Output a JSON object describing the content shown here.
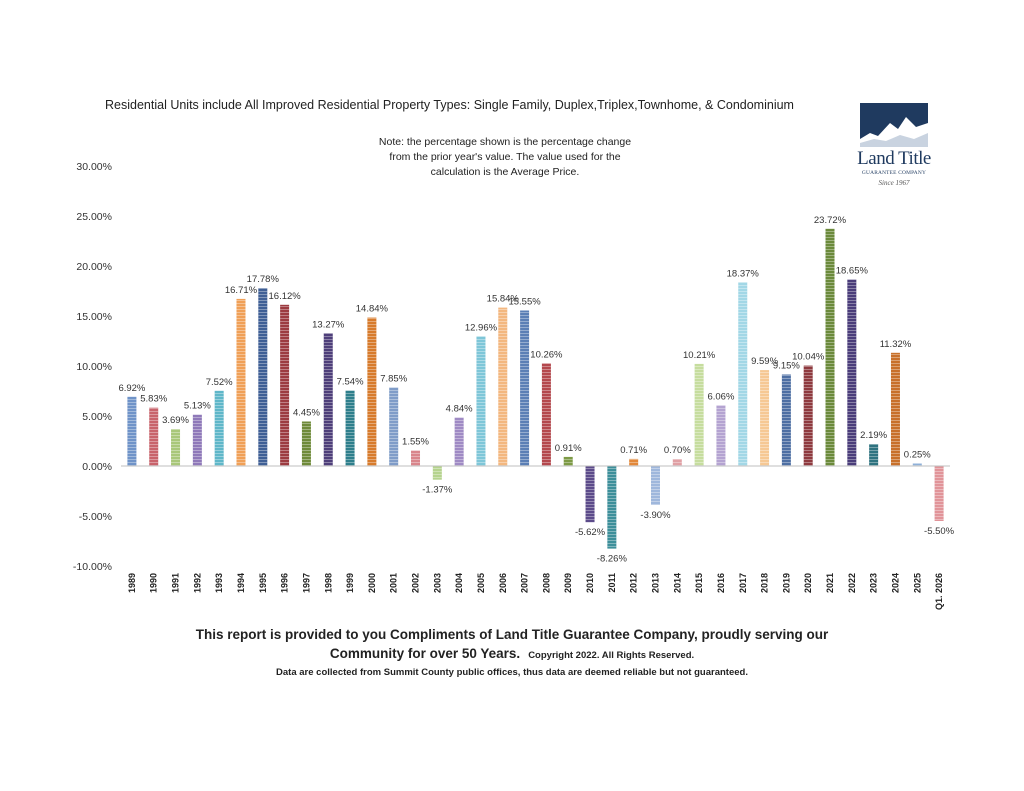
{
  "chart_data": {
    "type": "bar",
    "title": "Residential Units include All Improved Residential Property Types: Single Family, Duplex,Triplex,Townhome, & Condominium",
    "note": "Note: the percentage shown is the percentage change from the prior year's value.  The value used for the calculation is the Average Price.",
    "xlabel": "",
    "ylabel": "",
    "ylim": [
      -10,
      30
    ],
    "yticks": [
      30,
      25,
      20,
      15,
      10,
      5,
      0,
      -5,
      -10
    ],
    "ytick_labels": [
      "30.00%",
      "25.00%",
      "20.00%",
      "15.00%",
      "10.00%",
      "5.00%",
      "0.00%",
      "-5.00%",
      "-10.00%"
    ],
    "categories": [
      "1989",
      "1990",
      "1991",
      "1992",
      "1993",
      "1994",
      "1995",
      "1996",
      "1997",
      "1998",
      "1999",
      "2000",
      "2001",
      "2002",
      "2003",
      "2004",
      "2005",
      "2006",
      "2007",
      "2008",
      "2009",
      "2010",
      "2011",
      "2012",
      "2013",
      "2014",
      "2015",
      "2016",
      "2017",
      "2018",
      "2019",
      "2020",
      "2021",
      "2022",
      "2023",
      "2024",
      "2025",
      "Q1. 2026"
    ],
    "values": [
      6.92,
      5.83,
      3.69,
      5.13,
      7.52,
      16.71,
      17.78,
      16.12,
      4.45,
      13.27,
      7.54,
      14.84,
      7.85,
      1.55,
      -1.37,
      4.84,
      12.96,
      15.84,
      15.55,
      10.26,
      0.91,
      -5.62,
      -8.26,
      0.71,
      -3.9,
      0.7,
      10.21,
      6.06,
      18.37,
      9.59,
      9.15,
      10.04,
      23.72,
      18.65,
      2.19,
      11.32,
      0.25,
      -5.5
    ],
    "data_labels": [
      "6.92%",
      "5.83%",
      "3.69%",
      "5.13%",
      "7.52%",
      "16.71%",
      "17.78%",
      "16.12%",
      "4.45%",
      "13.27%",
      "7.54%",
      "14.84%",
      "7.85%",
      "1.55%",
      "-1.37%",
      "4.84%",
      "12.96%",
      "15.84%",
      "15.55%",
      "10.26%",
      "0.91%",
      "-5.62%",
      "-8.26%",
      "0.71%",
      "-3.90%",
      "0.70%",
      "10.21%",
      "6.06%",
      "18.37%",
      "9.59%",
      "9.15%",
      "10.04%",
      "23.72%",
      "18.65%",
      "2.19%",
      "11.32%",
      "0.25%",
      "-5.50%"
    ],
    "colors": [
      "#6f93c8",
      "#c8636b",
      "#a9c77a",
      "#8f79b9",
      "#5fb7c9",
      "#f0a057",
      "#3f5f95",
      "#9c3b40",
      "#6f8a3a",
      "#4e3f7a",
      "#2e7f8c",
      "#d77b2c",
      "#7f9cc8",
      "#d9868c",
      "#b5d38e",
      "#9f8ac4",
      "#7ec6d8",
      "#f3b77f",
      "#5b7fb5",
      "#b4484d",
      "#7d9a45",
      "#5c4b8a",
      "#3d8f9a",
      "#e2883a",
      "#9fb7dc",
      "#e0a0a4",
      "#c6dd9e",
      "#b4a3d1",
      "#a2d7e6",
      "#f6c894",
      "#4e6fa3",
      "#8e3a3f",
      "#6b8a3b",
      "#4a3d7a",
      "#2f7380",
      "#c8702a",
      "#8fb0d8",
      "#e19499"
    ],
    "legend": "none"
  },
  "footer": {
    "line1": "This report is provided to you Compliments of Land Title Guarantee Company, proudly serving our",
    "line2": "Community for over 50 Years.",
    "copyright": "Copyright 2022.  All Rights Reserved.",
    "line3": "Data are collected from Summit County public offices, thus data are deemed reliable but not guaranteed."
  },
  "logo": {
    "brand": "Land Title",
    "tagline": "GUARANTEE COMPANY",
    "since": "Since 1967",
    "color": "#1f3a5f"
  }
}
